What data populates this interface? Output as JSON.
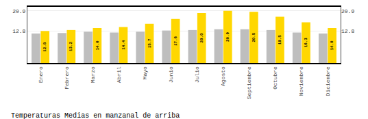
{
  "chart_data": {
    "type": "bar",
    "title": "Temperaturas Medias en manzanal de arriba",
    "categories": [
      "Enero",
      "Febrero",
      "Marzo",
      "Abril",
      "Mayo",
      "Junio",
      "Julio",
      "Agosto",
      "Septiembre",
      "Octubre",
      "Noviembre",
      "Diciembre"
    ],
    "series": [
      {
        "color": "#BEBEBE",
        "values": [
          11.8,
          12.0,
          12.5,
          12.2,
          12.5,
          13.0,
          13.2,
          13.5,
          13.5,
          13.2,
          12.2,
          11.8
        ]
      },
      {
        "color": "#FFD700",
        "values": [
          12.8,
          13.2,
          14.0,
          14.4,
          15.7,
          17.6,
          20.0,
          20.9,
          20.5,
          18.5,
          16.3,
          14.0
        ],
        "value_labels": [
          "12.8",
          "13.2",
          "14.0",
          "14.4",
          "15.7",
          "17.6",
          "20.0",
          "20.9",
          "20.5",
          "18.5",
          "16.3",
          "14.0"
        ],
        "data_labels": true
      }
    ],
    "ylim": [
      0,
      22.5
    ],
    "yticks": [
      12.8,
      20.9
    ],
    "y2lim": [
      0,
      22.5
    ],
    "y2ticks": [
      12.8,
      20.9
    ],
    "grid": true
  }
}
